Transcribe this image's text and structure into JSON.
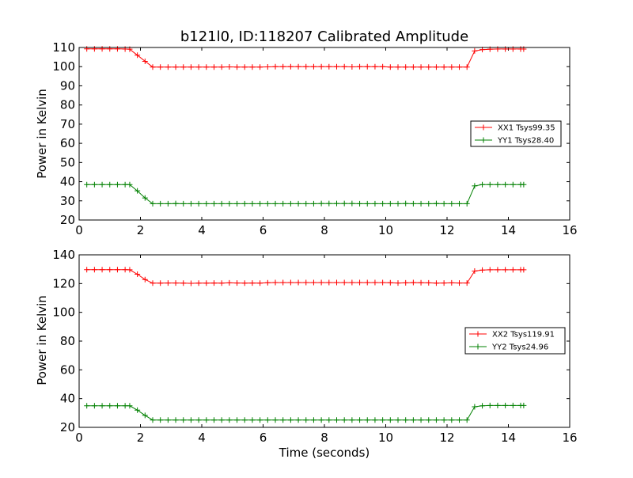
{
  "chart_data": [
    {
      "type": "line",
      "title": "b121l0, ID:118207 Calibrated Amplitude",
      "xlabel": "",
      "ylabel": "Power in Kelvin",
      "xlim": [
        0,
        16
      ],
      "ylim": [
        20,
        110
      ],
      "xticks": [
        0,
        2,
        4,
        6,
        8,
        10,
        12,
        14,
        16
      ],
      "yticks": [
        20,
        30,
        40,
        50,
        60,
        70,
        80,
        90,
        100,
        110
      ],
      "legend_position": "center-right",
      "x": [
        0.25,
        0.5,
        0.75,
        1.0,
        1.25,
        1.5,
        1.65,
        1.9,
        2.15,
        2.4,
        2.65,
        2.9,
        3.15,
        3.4,
        3.65,
        3.9,
        4.15,
        4.4,
        4.65,
        4.9,
        5.15,
        5.4,
        5.65,
        5.9,
        6.15,
        6.4,
        6.65,
        6.9,
        7.15,
        7.4,
        7.65,
        7.9,
        8.15,
        8.4,
        8.65,
        8.9,
        9.15,
        9.4,
        9.65,
        9.9,
        10.15,
        10.4,
        10.65,
        10.9,
        11.15,
        11.4,
        11.65,
        11.9,
        12.15,
        12.4,
        12.65,
        12.9,
        13.15,
        13.4,
        13.65,
        13.9,
        14.15,
        14.4,
        14.5
      ],
      "series": [
        {
          "name": "XX1 Tsys99.35",
          "color": "#ff0000",
          "values": [
            109.3,
            109.3,
            109.3,
            109.3,
            109.3,
            109.2,
            109.1,
            106.0,
            102.8,
            99.8,
            99.8,
            99.8,
            99.8,
            99.8,
            99.8,
            99.8,
            99.8,
            99.8,
            99.8,
            99.9,
            99.8,
            99.8,
            99.8,
            99.8,
            99.9,
            100.0,
            100.0,
            100.0,
            100.0,
            100.0,
            100.0,
            100.0,
            100.0,
            100.0,
            100.0,
            99.9,
            100.0,
            100.0,
            100.0,
            100.0,
            99.8,
            99.8,
            99.8,
            99.8,
            99.8,
            99.8,
            99.8,
            99.8,
            99.8,
            99.8,
            99.8,
            108.2,
            108.9,
            109.1,
            109.2,
            109.2,
            109.2,
            109.2,
            109.2
          ]
        },
        {
          "name": "YY1 Tsys28.40",
          "color": "#008000",
          "values": [
            38.5,
            38.5,
            38.5,
            38.5,
            38.5,
            38.5,
            38.5,
            35.2,
            31.5,
            28.5,
            28.5,
            28.5,
            28.6,
            28.5,
            28.5,
            28.5,
            28.5,
            28.5,
            28.5,
            28.5,
            28.5,
            28.5,
            28.5,
            28.5,
            28.5,
            28.5,
            28.5,
            28.5,
            28.5,
            28.5,
            28.5,
            28.6,
            28.6,
            28.6,
            28.6,
            28.6,
            28.5,
            28.5,
            28.5,
            28.5,
            28.5,
            28.5,
            28.6,
            28.5,
            28.5,
            28.5,
            28.6,
            28.5,
            28.5,
            28.5,
            28.5,
            37.8,
            38.5,
            38.5,
            38.5,
            38.5,
            38.5,
            38.5,
            38.5
          ]
        }
      ]
    },
    {
      "type": "line",
      "title": "",
      "xlabel": "Time (seconds)",
      "ylabel": "Power in Kelvin",
      "xlim": [
        0,
        16
      ],
      "ylim": [
        20,
        140
      ],
      "xticks": [
        0,
        2,
        4,
        6,
        8,
        10,
        12,
        14,
        16
      ],
      "yticks": [
        20,
        40,
        60,
        80,
        100,
        120,
        140
      ],
      "legend_position": "center-right",
      "x": [
        0.25,
        0.5,
        0.75,
        1.0,
        1.25,
        1.5,
        1.65,
        1.9,
        2.15,
        2.4,
        2.65,
        2.9,
        3.15,
        3.4,
        3.65,
        3.9,
        4.15,
        4.4,
        4.65,
        4.9,
        5.15,
        5.4,
        5.65,
        5.9,
        6.15,
        6.4,
        6.65,
        6.9,
        7.15,
        7.4,
        7.65,
        7.9,
        8.15,
        8.4,
        8.65,
        8.9,
        9.15,
        9.4,
        9.65,
        9.9,
        10.15,
        10.4,
        10.65,
        10.9,
        11.15,
        11.4,
        11.65,
        11.9,
        12.15,
        12.4,
        12.65,
        12.9,
        13.15,
        13.4,
        13.65,
        13.9,
        14.15,
        14.4,
        14.5
      ],
      "series": [
        {
          "name": "XX2 Tsys119.91",
          "color": "#ff0000",
          "values": [
            129.7,
            129.7,
            129.7,
            129.7,
            129.7,
            129.7,
            129.6,
            126.5,
            122.8,
            120.3,
            120.3,
            120.4,
            120.4,
            120.3,
            120.2,
            120.3,
            120.3,
            120.4,
            120.3,
            120.5,
            120.4,
            120.3,
            120.4,
            120.3,
            120.6,
            120.7,
            120.7,
            120.7,
            120.7,
            120.7,
            120.7,
            120.7,
            120.7,
            120.7,
            120.7,
            120.7,
            120.7,
            120.7,
            120.7,
            120.7,
            120.6,
            120.4,
            120.5,
            120.7,
            120.6,
            120.5,
            120.3,
            120.4,
            120.5,
            120.4,
            120.4,
            128.7,
            129.4,
            129.6,
            129.6,
            129.6,
            129.6,
            129.6,
            129.6
          ]
        },
        {
          "name": "YY2 Tsys24.96",
          "color": "#008000",
          "values": [
            35.0,
            35.0,
            35.0,
            35.0,
            35.0,
            35.0,
            35.0,
            32.0,
            28.3,
            25.1,
            25.1,
            25.1,
            25.1,
            25.1,
            25.1,
            25.1,
            25.1,
            25.1,
            25.1,
            25.1,
            25.1,
            25.1,
            25.1,
            25.1,
            25.1,
            25.1,
            25.1,
            25.1,
            25.1,
            25.1,
            25.1,
            25.1,
            25.1,
            25.1,
            25.1,
            25.1,
            25.1,
            25.1,
            25.1,
            25.1,
            25.1,
            25.1,
            25.1,
            25.1,
            25.1,
            25.1,
            25.1,
            25.1,
            25.1,
            25.1,
            25.1,
            34.3,
            35.0,
            35.2,
            35.2,
            35.2,
            35.2,
            35.2,
            35.2
          ]
        }
      ]
    }
  ]
}
